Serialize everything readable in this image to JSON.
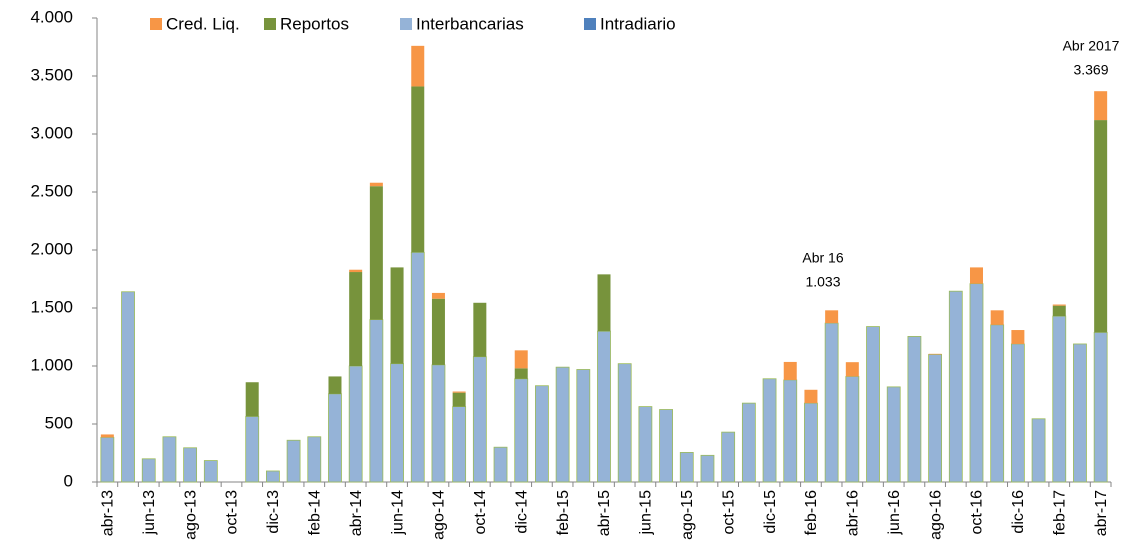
{
  "chart_data": {
    "type": "stacked_bar",
    "categories": [
      "abr-13",
      null,
      "jun-13",
      null,
      "ago-13",
      null,
      "oct-13",
      null,
      "dic-13",
      null,
      "feb-14",
      null,
      "abr-14",
      null,
      "jun-14",
      null,
      "ago-14",
      null,
      "oct-14",
      null,
      "dic-14",
      null,
      "feb-15",
      null,
      "abr-15",
      null,
      "jun-15",
      null,
      "ago-15",
      null,
      "oct-15",
      null,
      "dic-15",
      null,
      "feb-16",
      null,
      "abr-16",
      null,
      "jun-16",
      null,
      "ago-16",
      null,
      "oct-16",
      null,
      "dic-16",
      null,
      "feb-17",
      null,
      "abr-17"
    ],
    "series": [
      {
        "name": "Cred. Liq.",
        "color": "#f79646",
        "values": [
          25,
          0,
          0,
          0,
          0,
          0,
          0,
          0,
          0,
          0,
          0,
          0,
          20,
          30,
          0,
          350,
          50,
          10,
          0,
          0,
          155,
          0,
          0,
          0,
          0,
          0,
          0,
          0,
          0,
          0,
          0,
          0,
          0,
          155,
          115,
          110,
          123,
          0,
          0,
          0,
          5,
          0,
          140,
          125,
          120,
          0,
          10,
          0,
          249
        ]
      },
      {
        "name": "Reportos",
        "color": "#77933c",
        "values": [
          0,
          0,
          0,
          0,
          0,
          0,
          0,
          295,
          0,
          0,
          0,
          150,
          810,
          1150,
          830,
          1430,
          570,
          120,
          465,
          0,
          90,
          0,
          0,
          0,
          490,
          0,
          0,
          0,
          0,
          0,
          0,
          0,
          0,
          0,
          0,
          0,
          0,
          0,
          0,
          0,
          0,
          0,
          0,
          0,
          0,
          0,
          90,
          0,
          1830
        ]
      },
      {
        "name": "Interbancarias",
        "color": "#95b3d7",
        "values": [
          385,
          1640,
          200,
          390,
          295,
          185,
          0,
          565,
          95,
          360,
          390,
          760,
          1000,
          1400,
          1020,
          1980,
          1010,
          650,
          1080,
          300,
          890,
          830,
          990,
          970,
          1300,
          1020,
          650,
          625,
          255,
          230,
          430,
          680,
          890,
          880,
          680,
          1370,
          910,
          1340,
          820,
          1255,
          1100,
          1645,
          1710,
          1355,
          1190,
          545,
          1430,
          1190,
          1290
        ]
      },
      {
        "name": "Intradiario",
        "color": "#4f81bd",
        "values": [
          0,
          0,
          0,
          0,
          0,
          0,
          0,
          0,
          0,
          0,
          0,
          0,
          0,
          0,
          0,
          0,
          0,
          0,
          0,
          0,
          0,
          0,
          0,
          0,
          0,
          0,
          0,
          0,
          0,
          0,
          0,
          0,
          0,
          0,
          0,
          0,
          0,
          0,
          0,
          0,
          0,
          0,
          0,
          0,
          0,
          0,
          0,
          0,
          0
        ]
      }
    ],
    "ylim": [
      0,
      4000
    ],
    "yticks": [
      0,
      500,
      {
        "value": 1000,
        "label": "1.000"
      },
      {
        "value": 1500,
        "label": "1.500"
      },
      {
        "value": 2000,
        "label": "2.000"
      },
      {
        "value": 2500,
        "label": "2.500"
      },
      {
        "value": 3000,
        "label": "3.000"
      },
      {
        "value": 3500,
        "label": "3.500"
      },
      {
        "value": 4000,
        "label": "4.000"
      }
    ],
    "grid": false,
    "annotations": [
      {
        "title": "Abr 16",
        "value": "1.033"
      },
      {
        "title": "Abr 2017",
        "value": "3.369"
      }
    ]
  }
}
